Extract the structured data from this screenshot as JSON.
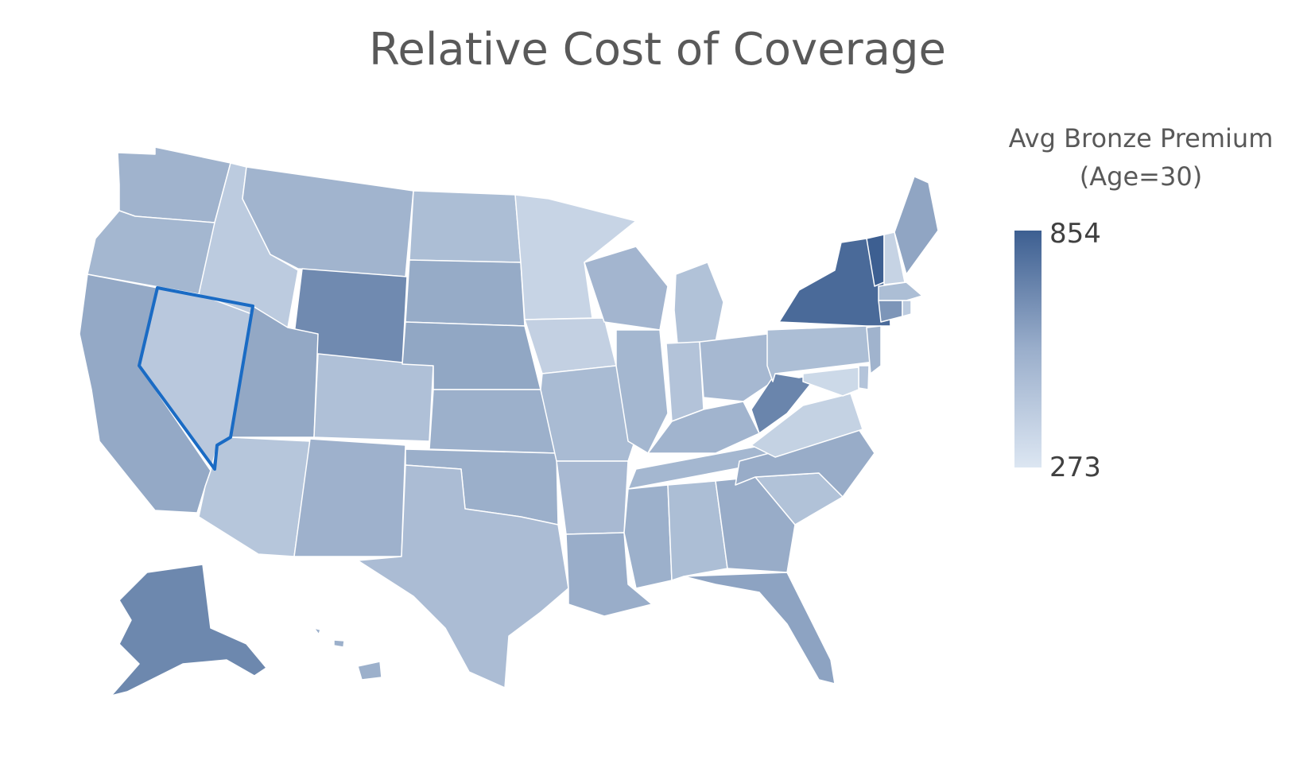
{
  "title": "Relative Cost of Coverage",
  "legend": {
    "title_line1": "Avg Bronze Premium",
    "title_line2": "(Age=30)",
    "max_label": "854",
    "min_label": "273",
    "max_value": 854,
    "min_value": 273,
    "color_high": "#3d5f91",
    "color_low": "#dce6f2"
  },
  "selected_state": "Nevada",
  "states": [
    {
      "name": "Washington",
      "level": 0.38
    },
    {
      "name": "Oregon",
      "level": 0.35
    },
    {
      "name": "California",
      "level": 0.45
    },
    {
      "name": "Nevada",
      "level": 0.22
    },
    {
      "name": "Idaho",
      "level": 0.2
    },
    {
      "name": "Montana",
      "level": 0.37
    },
    {
      "name": "Wyoming",
      "level": 0.68
    },
    {
      "name": "Utah",
      "level": 0.46
    },
    {
      "name": "Arizona",
      "level": 0.24
    },
    {
      "name": "Colorado",
      "level": 0.28
    },
    {
      "name": "New Mexico",
      "level": 0.39
    },
    {
      "name": "North Dakota",
      "level": 0.3
    },
    {
      "name": "South Dakota",
      "level": 0.44
    },
    {
      "name": "Nebraska",
      "level": 0.47
    },
    {
      "name": "Kansas",
      "level": 0.4
    },
    {
      "name": "Oklahoma",
      "level": 0.41
    },
    {
      "name": "Texas",
      "level": 0.31
    },
    {
      "name": "Minnesota",
      "level": 0.13
    },
    {
      "name": "Iowa",
      "level": 0.16
    },
    {
      "name": "Missouri",
      "level": 0.32
    },
    {
      "name": "Arkansas",
      "level": 0.33
    },
    {
      "name": "Louisiana",
      "level": 0.42
    },
    {
      "name": "Wisconsin",
      "level": 0.36
    },
    {
      "name": "Illinois",
      "level": 0.35
    },
    {
      "name": "Michigan",
      "level": 0.27
    },
    {
      "name": "Indiana",
      "level": 0.26
    },
    {
      "name": "Ohio",
      "level": 0.34
    },
    {
      "name": "Kentucky",
      "level": 0.37
    },
    {
      "name": "Tennessee",
      "level": 0.35
    },
    {
      "name": "Mississippi",
      "level": 0.4
    },
    {
      "name": "Alabama",
      "level": 0.3
    },
    {
      "name": "Georgia",
      "level": 0.43
    },
    {
      "name": "Florida",
      "level": 0.5
    },
    {
      "name": "South Carolina",
      "level": 0.27
    },
    {
      "name": "North Carolina",
      "level": 0.43
    },
    {
      "name": "Virginia",
      "level": 0.15
    },
    {
      "name": "West Virginia",
      "level": 0.72
    },
    {
      "name": "Pennsylvania",
      "level": 0.3
    },
    {
      "name": "New York",
      "level": 0.92
    },
    {
      "name": "Vermont",
      "level": 1.0
    },
    {
      "name": "New Hampshire",
      "level": 0.14
    },
    {
      "name": "Maine",
      "level": 0.48
    },
    {
      "name": "Massachusetts",
      "level": 0.3
    },
    {
      "name": "Connecticut",
      "level": 0.6
    },
    {
      "name": "Rhode Island",
      "level": 0.2
    },
    {
      "name": "New Jersey",
      "level": 0.38
    },
    {
      "name": "Delaware",
      "level": 0.25
    },
    {
      "name": "Maryland",
      "level": 0.1
    },
    {
      "name": "Alaska",
      "level": 0.7
    },
    {
      "name": "Hawaii",
      "level": 0.4
    }
  ]
}
